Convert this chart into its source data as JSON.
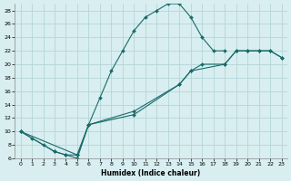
{
  "title": "",
  "xlabel": "Humidex (Indice chaleur)",
  "ylabel": "",
  "bg_color": "#d8eef0",
  "grid_color": "#b5d5d8",
  "line_color": "#1a6b6b",
  "marker_color": "#1a6b6b",
  "xlim": [
    -0.5,
    23.5
  ],
  "ylim": [
    6,
    29
  ],
  "xticks": [
    0,
    1,
    2,
    3,
    4,
    5,
    6,
    7,
    8,
    9,
    10,
    11,
    12,
    13,
    14,
    15,
    16,
    17,
    18,
    19,
    20,
    21,
    22,
    23
  ],
  "yticks": [
    6,
    8,
    10,
    12,
    14,
    16,
    18,
    20,
    22,
    24,
    26,
    28
  ],
  "line1_x": [
    0,
    1,
    2,
    3,
    4,
    5,
    6,
    7,
    8,
    9,
    10,
    11,
    12,
    13,
    14,
    15,
    16,
    17,
    18
  ],
  "line1_y": [
    10,
    9,
    8,
    7,
    6.5,
    6,
    11,
    15,
    19,
    22,
    25,
    27,
    28,
    29,
    29,
    27,
    24,
    22,
    22
  ],
  "line2_x": [
    0,
    5,
    6,
    10,
    14,
    15,
    16,
    18,
    19,
    20,
    21,
    22,
    23
  ],
  "line2_y": [
    10,
    6.5,
    11,
    13,
    17,
    19,
    20,
    20,
    22,
    22,
    22,
    22,
    21
  ],
  "line3_x": [
    0,
    3,
    4,
    5,
    6,
    10,
    14,
    15,
    18,
    19,
    20,
    21,
    22,
    23
  ],
  "line3_y": [
    10,
    7,
    6.5,
    6.5,
    11,
    12.5,
    17,
    19,
    20,
    22,
    22,
    22,
    22,
    21
  ],
  "figsize": [
    3.2,
    2.0
  ],
  "dpi": 100
}
